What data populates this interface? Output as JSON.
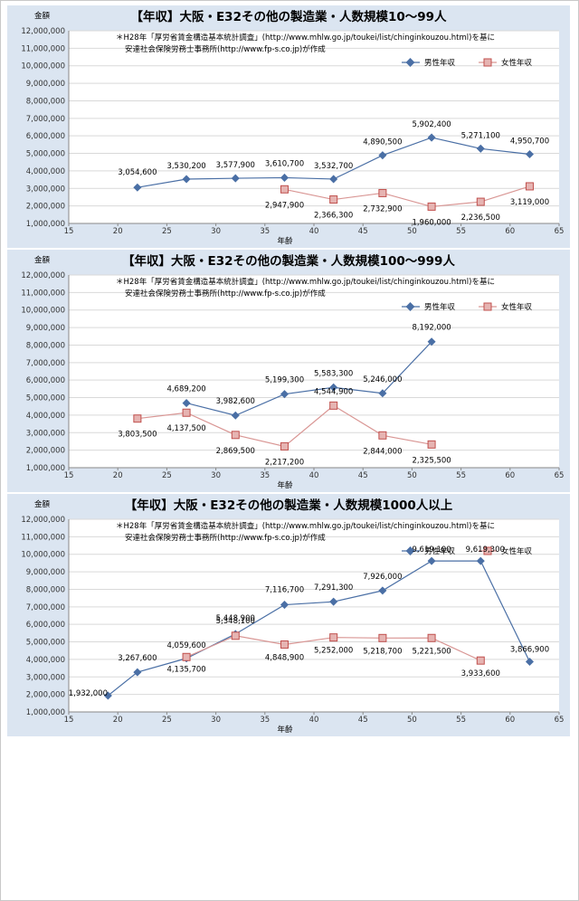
{
  "colors": {
    "male": "#4a6fa5",
    "female_line": "#d99694",
    "female_marker": "#e6b4b2",
    "female_marker_border": "#c0504d",
    "panel_bg": "#dbe5f1",
    "plot_bg": "#ffffff",
    "grid": "#d9d9d9"
  },
  "chart_data": [
    {
      "type": "line",
      "title": "【年収】大阪・E32その他の製造業・人数規模10～99人",
      "note_line1": "＊H28年「厚労省賃金構造基本統計調査」(http://www.mhlw.go.jp/toukei/list/chinginkouzou.html)を基に",
      "note_line2": "安達社会保険労務士事務所(http://www.fp-s.co.jp)が作成",
      "ylabel": "金額",
      "xlabel": "年齢",
      "xlim": [
        15,
        65
      ],
      "ylim": [
        1000000,
        12000000
      ],
      "xticks": [
        "15",
        "20",
        "25",
        "30",
        "35",
        "40",
        "45",
        "50",
        "55",
        "60",
        "65"
      ],
      "yticks": [
        "1,000,000",
        "2,000,000",
        "3,000,000",
        "4,000,000",
        "5,000,000",
        "6,000,000",
        "7,000,000",
        "8,000,000",
        "9,000,000",
        "10,000,000",
        "11,000,000",
        "12,000,000"
      ],
      "grid": true,
      "legend": "top-right",
      "series": [
        {
          "name": "男性年収",
          "x": [
            22,
            27,
            32,
            37,
            42,
            47,
            52,
            57,
            62
          ],
          "y": [
            3054600,
            3530200,
            3577900,
            3610700,
            3532700,
            4890500,
            5902400,
            5271100,
            4950700
          ],
          "labels": [
            "3,054,600",
            "3,530,200",
            "3,577,900",
            "3,610,700",
            "3,532,700",
            "4,890,500",
            "5,902,400",
            "5,271,100",
            "4,950,700"
          ]
        },
        {
          "name": "女性年収",
          "x": [
            37,
            42,
            47,
            52,
            57,
            62
          ],
          "y": [
            2947900,
            2366300,
            2732900,
            1960000,
            2236500,
            3119000
          ],
          "labels": [
            "2,947,900",
            "2,366,300",
            "2,732,900",
            "1,960,000",
            "2,236,500",
            "3,119,000"
          ]
        }
      ]
    },
    {
      "type": "line",
      "title": "【年収】大阪・E32その他の製造業・人数規模100～999人",
      "note_line1": "＊H28年「厚労省賃金構造基本統計調査」(http://www.mhlw.go.jp/toukei/list/chinginkouzou.html)を基に",
      "note_line2": "安達社会保険労務士事務所(http://www.fp-s.co.jp)が作成",
      "ylabel": "金額",
      "xlabel": "年齢",
      "xlim": [
        15,
        65
      ],
      "ylim": [
        1000000,
        12000000
      ],
      "xticks": [
        "15",
        "20",
        "25",
        "30",
        "35",
        "40",
        "45",
        "50",
        "55",
        "60",
        "65"
      ],
      "yticks": [
        "1,000,000",
        "2,000,000",
        "3,000,000",
        "4,000,000",
        "5,000,000",
        "6,000,000",
        "7,000,000",
        "8,000,000",
        "9,000,000",
        "10,000,000",
        "11,000,000",
        "12,000,000"
      ],
      "grid": true,
      "legend": "top-right",
      "series": [
        {
          "name": "男性年収",
          "x": [
            27,
            32,
            37,
            42,
            47,
            52
          ],
          "y": [
            4689200,
            3982600,
            5199300,
            5583300,
            5246000,
            8192000
          ],
          "labels": [
            "4,689,200",
            "3,982,600",
            "5,199,300",
            "5,583,300",
            "5,246,000",
            "8,192,000"
          ]
        },
        {
          "name": "女性年収",
          "x": [
            22,
            27,
            32,
            37,
            42,
            47,
            52
          ],
          "y": [
            3803500,
            4137500,
            2869500,
            2217200,
            4544900,
            2844000,
            2325500
          ],
          "labels": [
            "3,803,500",
            "4,137,500",
            "2,869,500",
            "2,217,200",
            "4,544,900",
            "2,844,000",
            "2,325,500"
          ]
        }
      ]
    },
    {
      "type": "line",
      "title": "【年収】大阪・E32その他の製造業・人数規模1000人以上",
      "note_line1": "＊H28年「厚労省賃金構造基本統計調査」(http://www.mhlw.go.jp/toukei/list/chinginkouzou.html)を基に",
      "note_line2": "安達社会保険労務士事務所(http://www.fp-s.co.jp)が作成",
      "ylabel": "金額",
      "xlabel": "年齢",
      "xlim": [
        15,
        65
      ],
      "ylim": [
        1000000,
        12000000
      ],
      "xticks": [
        "15",
        "20",
        "25",
        "30",
        "35",
        "40",
        "45",
        "50",
        "55",
        "60",
        "65"
      ],
      "yticks": [
        "1,000,000",
        "2,000,000",
        "3,000,000",
        "4,000,000",
        "5,000,000",
        "6,000,000",
        "7,000,000",
        "8,000,000",
        "9,000,000",
        "10,000,000",
        "11,000,000",
        "12,000,000"
      ],
      "grid": true,
      "legend": "top-right",
      "series": [
        {
          "name": "男性年収",
          "x": [
            19,
            22,
            27,
            32,
            37,
            42,
            47,
            52,
            57,
            62
          ],
          "y": [
            1932000,
            3267600,
            4059600,
            5448900,
            7116700,
            7291300,
            7926000,
            9619100,
            9619300,
            3866900
          ],
          "labels": [
            "1,932,000",
            "3,267,600",
            "4,059,600",
            "5,448,900",
            "7,116,700",
            "7,291,300",
            "7,926,000",
            "9,619,100",
            "9,619,300",
            "3,866,900"
          ]
        },
        {
          "name": "女性年収",
          "x": [
            27,
            32,
            37,
            42,
            47,
            52,
            57
          ],
          "y": [
            4135700,
            5348100,
            4848900,
            5252000,
            5218700,
            5221500,
            3933600
          ],
          "labels": [
            "4,135,700",
            "5,348,100",
            "4,848,900",
            "5,252,000",
            "5,218,700",
            "5,221,500",
            "3,933,600"
          ]
        }
      ]
    }
  ]
}
